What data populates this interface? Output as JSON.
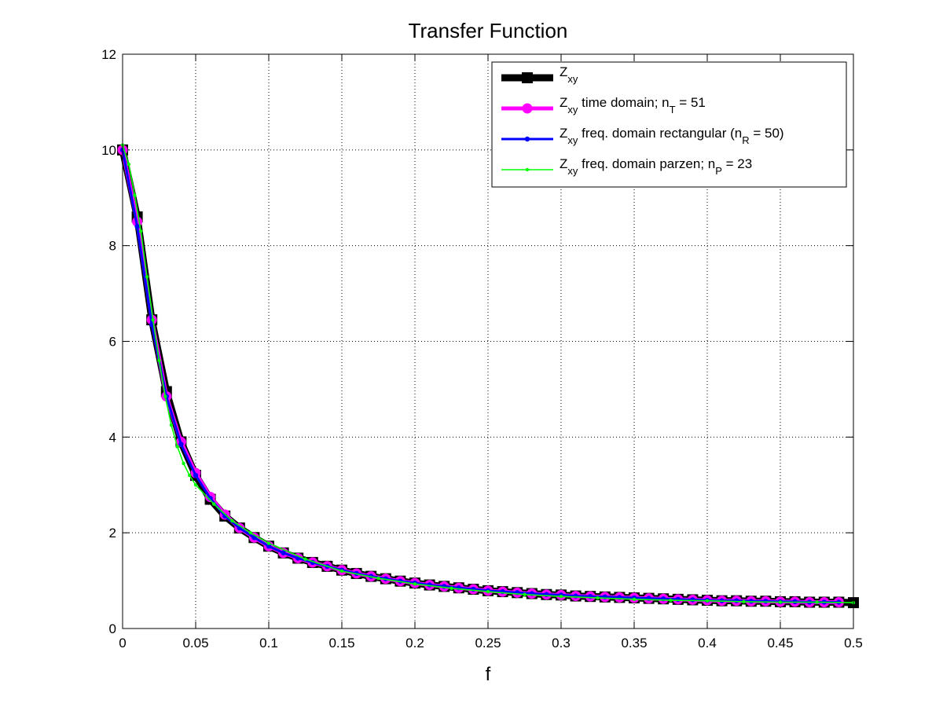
{
  "chart_data": {
    "type": "line",
    "title": "Transfer Function",
    "xlabel": "f",
    "ylabel": "",
    "xlim": [
      0,
      0.5
    ],
    "ylim": [
      0,
      12
    ],
    "xticks": [
      "0",
      "0.05",
      "0.1",
      "0.15",
      "0.2",
      "0.25",
      "0.3",
      "0.35",
      "0.4",
      "0.45",
      "0.5"
    ],
    "yticks": [
      "0",
      "2",
      "4",
      "6",
      "8",
      "10",
      "12"
    ],
    "grid": true,
    "legend_position": "top-right",
    "series": [
      {
        "legend": {
          "main": "Z",
          "sub": "xy",
          "rest": ""
        },
        "color": "#000000",
        "marker": "square",
        "x": [
          0.0,
          0.01,
          0.02,
          0.03,
          0.04,
          0.05,
          0.06,
          0.07,
          0.08,
          0.09,
          0.1,
          0.11,
          0.12,
          0.13,
          0.14,
          0.15,
          0.16,
          0.17,
          0.18,
          0.19,
          0.2,
          0.21,
          0.22,
          0.23,
          0.24,
          0.25,
          0.26,
          0.27,
          0.28,
          0.29,
          0.3,
          0.31,
          0.32,
          0.33,
          0.34,
          0.35,
          0.36,
          0.37,
          0.38,
          0.39,
          0.4,
          0.41,
          0.42,
          0.43,
          0.44,
          0.45,
          0.46,
          0.47,
          0.48,
          0.49,
          0.5
        ],
        "y": [
          10.0,
          8.6,
          6.45,
          4.95,
          3.9,
          3.2,
          2.7,
          2.35,
          2.1,
          1.9,
          1.72,
          1.58,
          1.47,
          1.38,
          1.3,
          1.22,
          1.15,
          1.09,
          1.04,
          0.99,
          0.95,
          0.91,
          0.88,
          0.85,
          0.82,
          0.79,
          0.77,
          0.75,
          0.73,
          0.71,
          0.7,
          0.68,
          0.67,
          0.66,
          0.65,
          0.64,
          0.63,
          0.62,
          0.61,
          0.6,
          0.59,
          0.58,
          0.58,
          0.57,
          0.57,
          0.56,
          0.56,
          0.55,
          0.55,
          0.55,
          0.54
        ]
      },
      {
        "legend": {
          "main": "Z",
          "sub": "xy",
          "rest": " time domain; n",
          "sub2": "T",
          "rest2": " = 51"
        },
        "color": "#ff00ff",
        "marker": "circle",
        "x": [
          0.0,
          0.01,
          0.02,
          0.03,
          0.04,
          0.05,
          0.06,
          0.07,
          0.08,
          0.09,
          0.1,
          0.11,
          0.12,
          0.13,
          0.14,
          0.15,
          0.16,
          0.17,
          0.18,
          0.19,
          0.2,
          0.21,
          0.22,
          0.23,
          0.24,
          0.25,
          0.26,
          0.27,
          0.28,
          0.29,
          0.3,
          0.31,
          0.32,
          0.33,
          0.34,
          0.35,
          0.36,
          0.37,
          0.38,
          0.39,
          0.4,
          0.41,
          0.42,
          0.43,
          0.44,
          0.45,
          0.46,
          0.47,
          0.48,
          0.49
        ],
        "y": [
          10.0,
          8.5,
          6.45,
          4.85,
          3.9,
          3.25,
          2.75,
          2.38,
          2.1,
          1.9,
          1.72,
          1.58,
          1.47,
          1.38,
          1.3,
          1.22,
          1.15,
          1.09,
          1.04,
          0.99,
          0.95,
          0.91,
          0.88,
          0.85,
          0.82,
          0.79,
          0.77,
          0.75,
          0.73,
          0.71,
          0.7,
          0.68,
          0.67,
          0.66,
          0.65,
          0.64,
          0.63,
          0.62,
          0.61,
          0.6,
          0.59,
          0.58,
          0.58,
          0.57,
          0.57,
          0.56,
          0.56,
          0.55,
          0.55,
          0.55
        ]
      },
      {
        "legend": {
          "main": "Z",
          "sub": "xy",
          "rest": " freq. domain rectangular (n",
          "sub2": "R",
          "rest2": " = 50)"
        },
        "color": "#0000ff",
        "marker": "dot",
        "x": [
          0.0,
          0.01,
          0.02,
          0.03,
          0.04,
          0.05,
          0.06,
          0.07,
          0.08,
          0.09,
          0.1,
          0.11,
          0.12,
          0.13,
          0.14,
          0.15,
          0.16,
          0.17,
          0.18,
          0.19,
          0.2,
          0.21,
          0.22,
          0.23,
          0.24,
          0.25,
          0.26,
          0.27,
          0.28,
          0.29,
          0.3,
          0.31,
          0.32,
          0.33,
          0.34,
          0.35,
          0.36,
          0.37,
          0.38,
          0.39,
          0.4,
          0.41,
          0.42,
          0.43,
          0.44,
          0.45,
          0.46,
          0.47,
          0.48,
          0.49
        ],
        "y": [
          10.0,
          8.4,
          6.35,
          4.85,
          3.85,
          3.2,
          2.72,
          2.35,
          2.1,
          1.9,
          1.72,
          1.58,
          1.47,
          1.38,
          1.3,
          1.22,
          1.15,
          1.09,
          1.04,
          0.99,
          0.95,
          0.91,
          0.88,
          0.85,
          0.82,
          0.79,
          0.77,
          0.75,
          0.73,
          0.71,
          0.7,
          0.68,
          0.67,
          0.66,
          0.65,
          0.64,
          0.63,
          0.62,
          0.61,
          0.6,
          0.59,
          0.58,
          0.58,
          0.57,
          0.57,
          0.56,
          0.56,
          0.55,
          0.55,
          0.55
        ]
      },
      {
        "legend": {
          "main": "Z",
          "sub": "xy",
          "rest": " freq. domain parzen; n",
          "sub2": "P",
          "rest2": " = 23"
        },
        "color": "#00ff00",
        "marker": "small-dot",
        "x": [
          0.0,
          0.0042,
          0.0083,
          0.0125,
          0.0167,
          0.0208,
          0.025,
          0.0292,
          0.0333,
          0.0375,
          0.0417,
          0.0458,
          0.05,
          0.0625,
          0.075,
          0.0875,
          0.1,
          0.125,
          0.15,
          0.175,
          0.2,
          0.225,
          0.25,
          0.275,
          0.3,
          0.325,
          0.35,
          0.375,
          0.4,
          0.425,
          0.45,
          0.475,
          0.5
        ],
        "y": [
          10.1,
          9.7,
          9.05,
          8.3,
          7.35,
          6.45,
          5.6,
          4.85,
          4.25,
          3.8,
          3.45,
          3.2,
          3.0,
          2.6,
          2.25,
          2.0,
          1.78,
          1.45,
          1.2,
          1.05,
          0.93,
          0.84,
          0.77,
          0.71,
          0.67,
          0.64,
          0.61,
          0.59,
          0.58,
          0.56,
          0.55,
          0.55,
          0.54
        ]
      }
    ]
  }
}
